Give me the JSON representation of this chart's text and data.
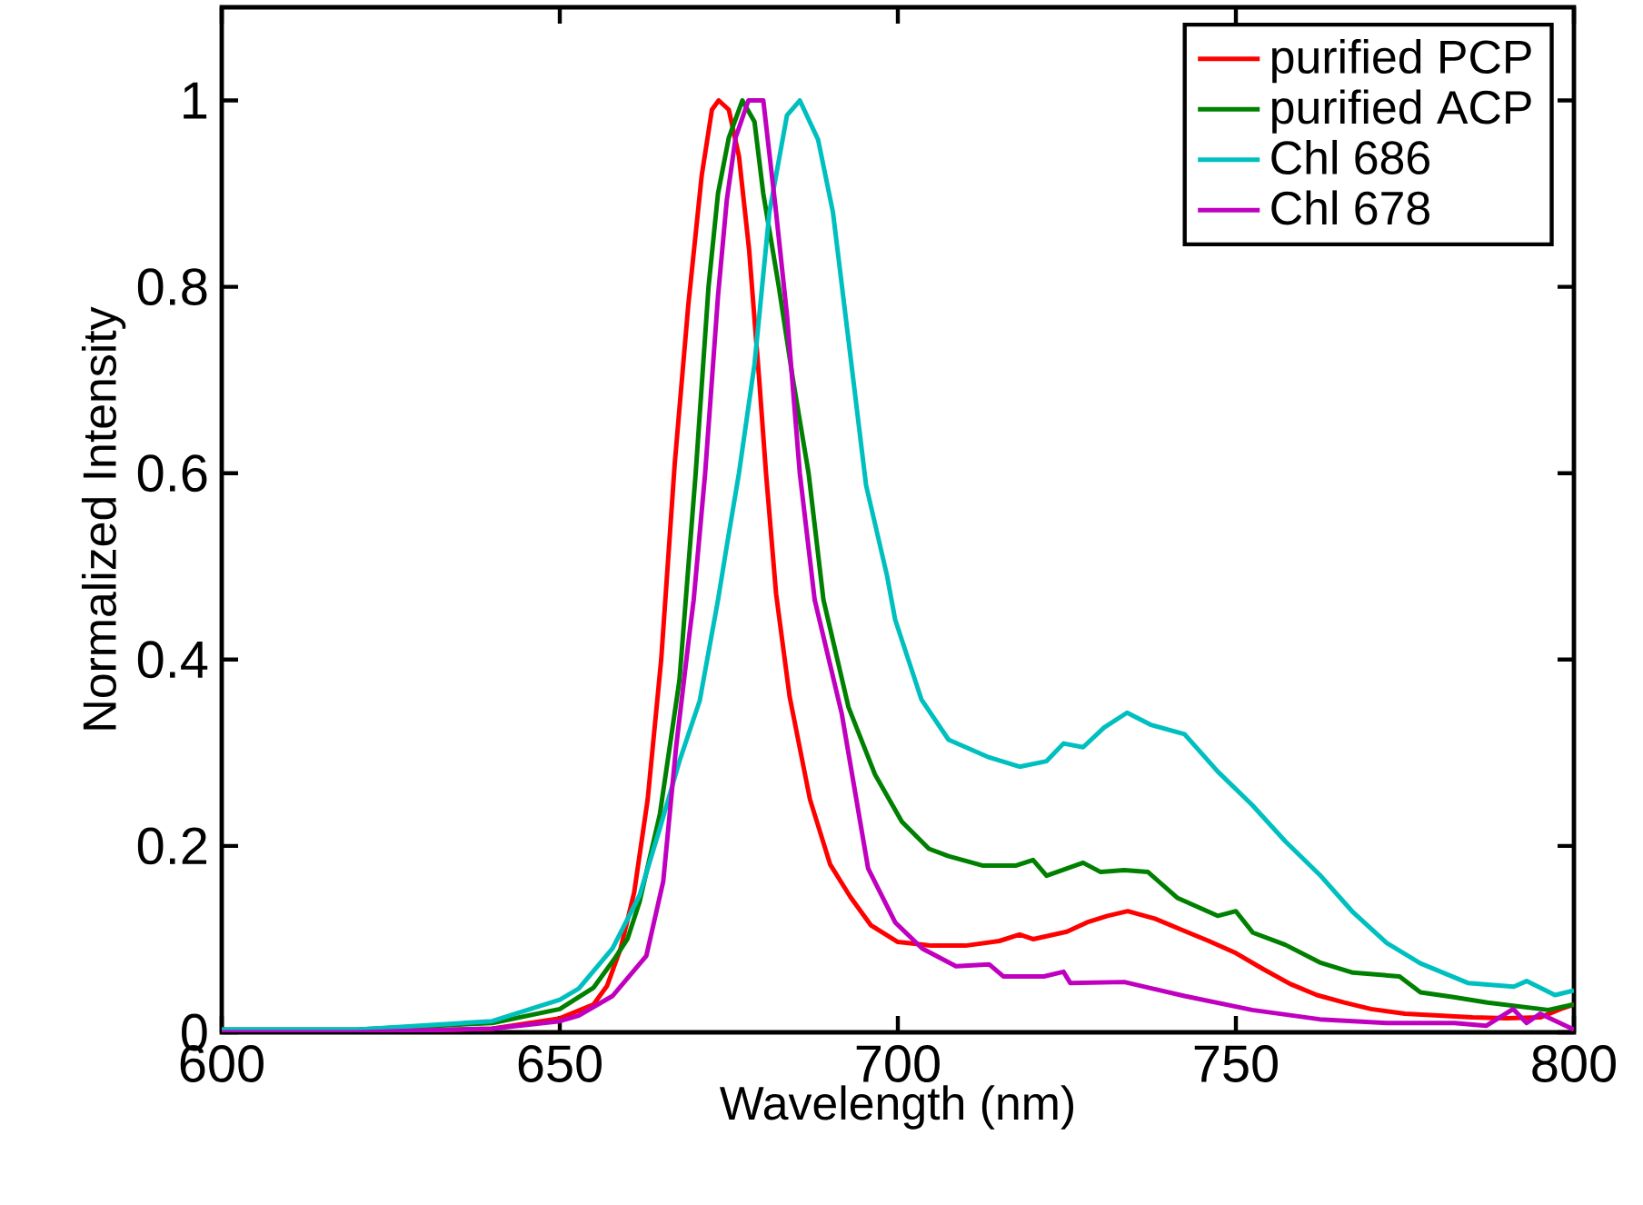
{
  "chart_data": {
    "type": "line",
    "xlabel": "Wavelength (nm)",
    "ylabel": "Normalized Intensity",
    "xlim": [
      600,
      800
    ],
    "ylim": [
      0,
      1.1
    ],
    "xticks": [
      600,
      650,
      700,
      750,
      800
    ],
    "yticks": [
      0,
      0.2,
      0.4,
      0.6,
      0.8,
      1
    ],
    "legend": "top right",
    "grid": false,
    "marker": "none",
    "line_style": "solid",
    "series": [
      {
        "name": "purified PCP",
        "color": "#ff0000",
        "x": [
          600,
          620,
          640,
          650,
          655,
          657,
          659,
          661,
          663,
          665,
          667,
          669,
          671,
          672.5,
          673.5,
          675,
          676.5,
          678,
          679.5,
          680.5,
          682,
          684,
          687,
          690,
          693,
          696,
          700,
          705,
          710,
          715,
          718,
          720,
          725,
          728,
          731,
          734,
          738,
          742,
          746,
          750,
          754,
          758,
          762,
          766,
          770,
          775,
          780,
          785,
          790,
          795,
          798,
          800
        ],
        "values": [
          0,
          0,
          0.004,
          0.015,
          0.03,
          0.05,
          0.09,
          0.15,
          0.25,
          0.4,
          0.61,
          0.78,
          0.92,
          0.99,
          1.0,
          0.99,
          0.94,
          0.84,
          0.7,
          0.6,
          0.47,
          0.36,
          0.25,
          0.18,
          0.145,
          0.115,
          0.097,
          0.093,
          0.093,
          0.098,
          0.105,
          0.1,
          0.108,
          0.118,
          0.125,
          0.13,
          0.122,
          0.11,
          0.098,
          0.085,
          0.068,
          0.052,
          0.04,
          0.032,
          0.025,
          0.02,
          0.018,
          0.016,
          0.015,
          0.016,
          0.025,
          0.03
        ]
      },
      {
        "name": "purified ACP",
        "color": "#008000",
        "x": [
          600,
          620,
          640,
          650,
          655,
          658,
          660,
          661.8,
          664.8,
          667.7,
          670.1,
          672,
          673.4,
          675,
          677,
          678.8,
          680.1,
          682.4,
          684.5,
          686.8,
          689,
          692.7,
          696.6,
          700.6,
          704.6,
          707.5,
          712.5,
          717.5,
          720,
          722,
          727.4,
          730,
          733.5,
          737,
          741.4,
          747.3,
          750,
          752.5,
          757.3,
          762.4,
          767.3,
          774.2,
          777.3,
          782,
          787.2,
          796.2,
          800
        ],
        "values": [
          0.003,
          0.003,
          0.01,
          0.025,
          0.048,
          0.078,
          0.1,
          0.14,
          0.234,
          0.378,
          0.6,
          0.8,
          0.9,
          0.96,
          1.0,
          0.977,
          0.9,
          0.8,
          0.7,
          0.6,
          0.464,
          0.349,
          0.277,
          0.226,
          0.197,
          0.189,
          0.179,
          0.179,
          0.185,
          0.168,
          0.182,
          0.172,
          0.174,
          0.172,
          0.144,
          0.125,
          0.13,
          0.107,
          0.094,
          0.075,
          0.064,
          0.06,
          0.043,
          0.038,
          0.032,
          0.024,
          0.03
        ]
      },
      {
        "name": "Chl 686",
        "color": "#00bfbf",
        "x": [
          600,
          620,
          640,
          650,
          652.8,
          657.8,
          661.8,
          664.8,
          667.7,
          670.7,
          673.4,
          674.7,
          676.5,
          678.8,
          681,
          683.6,
          685.5,
          688.2,
          690.4,
          692.7,
          695.3,
          698.4,
          699.6,
          703.5,
          707.5,
          713.5,
          718,
          722,
          724.5,
          727.4,
          730.5,
          733.9,
          737.4,
          742.4,
          747.3,
          752.4,
          757.3,
          762.4,
          767.3,
          772.3,
          777.3,
          784.3,
          791.1,
          793,
          797.2,
          800
        ],
        "values": [
          0.003,
          0.003,
          0.012,
          0.035,
          0.047,
          0.09,
          0.147,
          0.219,
          0.291,
          0.356,
          0.464,
          0.522,
          0.6,
          0.717,
          0.88,
          0.984,
          1.0,
          0.958,
          0.88,
          0.743,
          0.587,
          0.49,
          0.443,
          0.357,
          0.314,
          0.295,
          0.285,
          0.291,
          0.31,
          0.306,
          0.327,
          0.343,
          0.33,
          0.32,
          0.28,
          0.244,
          0.205,
          0.169,
          0.129,
          0.096,
          0.074,
          0.053,
          0.049,
          0.055,
          0.04,
          0.045
        ]
      },
      {
        "name": "Chl 678",
        "color": "#bf00bf",
        "x": [
          600,
          620,
          640,
          650,
          652.8,
          657.8,
          662.8,
          665.3,
          667.2,
          669.2,
          669.8,
          671.5,
          673.4,
          674.7,
          676,
          677.9,
          680.1,
          681.9,
          683.6,
          685.5,
          687.7,
          691.7,
          695.6,
          699.6,
          703.6,
          708.6,
          713.5,
          715.6,
          721.6,
          724.5,
          725.5,
          733.5,
          742.4,
          752.4,
          762.4,
          772.3,
          782.3,
          787,
          791,
          793,
          795,
          800
        ],
        "values": [
          0,
          0,
          0.004,
          0.012,
          0.018,
          0.039,
          0.082,
          0.162,
          0.306,
          0.429,
          0.464,
          0.6,
          0.79,
          0.893,
          0.96,
          1.0,
          1.0,
          0.886,
          0.77,
          0.6,
          0.464,
          0.342,
          0.176,
          0.118,
          0.09,
          0.071,
          0.073,
          0.06,
          0.06,
          0.065,
          0.053,
          0.054,
          0.039,
          0.024,
          0.014,
          0.01,
          0.01,
          0.007,
          0.025,
          0.01,
          0.02,
          0.003
        ]
      }
    ]
  }
}
